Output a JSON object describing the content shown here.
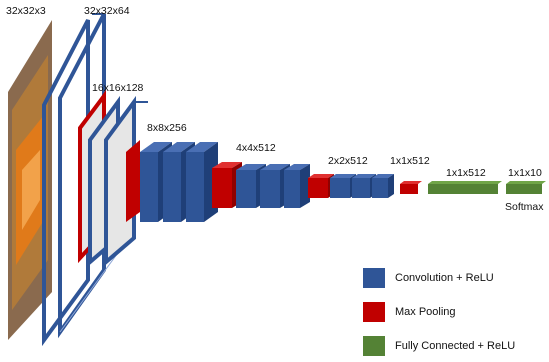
{
  "diagram": {
    "labels": {
      "input": "32x32x3",
      "conv1": "32x32x64",
      "conv2": "16x16x128",
      "conv3": "8x8x256",
      "conv4": "4x4x512",
      "conv5": "2x2x512",
      "pool5": "1x1x512",
      "fc1": "1x1x512",
      "fc2": "1x1x10",
      "softmax": "Softmax"
    },
    "legend": [
      {
        "label": "Convolution + ReLU",
        "color": "#2f5597"
      },
      {
        "label": "Max Pooling",
        "color": "#c00000"
      },
      {
        "label": "Fully Connected + ReLU",
        "color": "#548235"
      }
    ],
    "colors": {
      "conv": "#2f5597",
      "pool": "#c00000",
      "fc": "#548235"
    }
  }
}
